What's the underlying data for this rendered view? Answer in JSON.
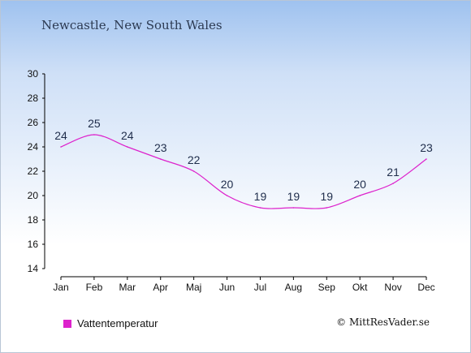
{
  "header": {
    "title": "Newcastle, New South Wales"
  },
  "legend": {
    "label": "Vattentemperatur"
  },
  "footer": {
    "copyright": "© MittResVader.se"
  },
  "colors": {
    "series": "#dd22cc",
    "axis": "#000000"
  },
  "chart_data": {
    "type": "line",
    "categories": [
      "Jan",
      "Feb",
      "Mar",
      "Apr",
      "Maj",
      "Jun",
      "Jul",
      "Aug",
      "Sep",
      "Okt",
      "Nov",
      "Dec"
    ],
    "series": [
      {
        "name": "Vattentemperatur",
        "values": [
          24,
          25,
          24,
          23,
          22,
          20,
          19,
          19,
          19,
          20,
          21,
          23
        ]
      }
    ],
    "yticks": [
      14,
      16,
      18,
      20,
      22,
      24,
      26,
      28,
      30
    ],
    "ylim": [
      14,
      30
    ],
    "grid": false,
    "legend_position": "bottom-left"
  }
}
